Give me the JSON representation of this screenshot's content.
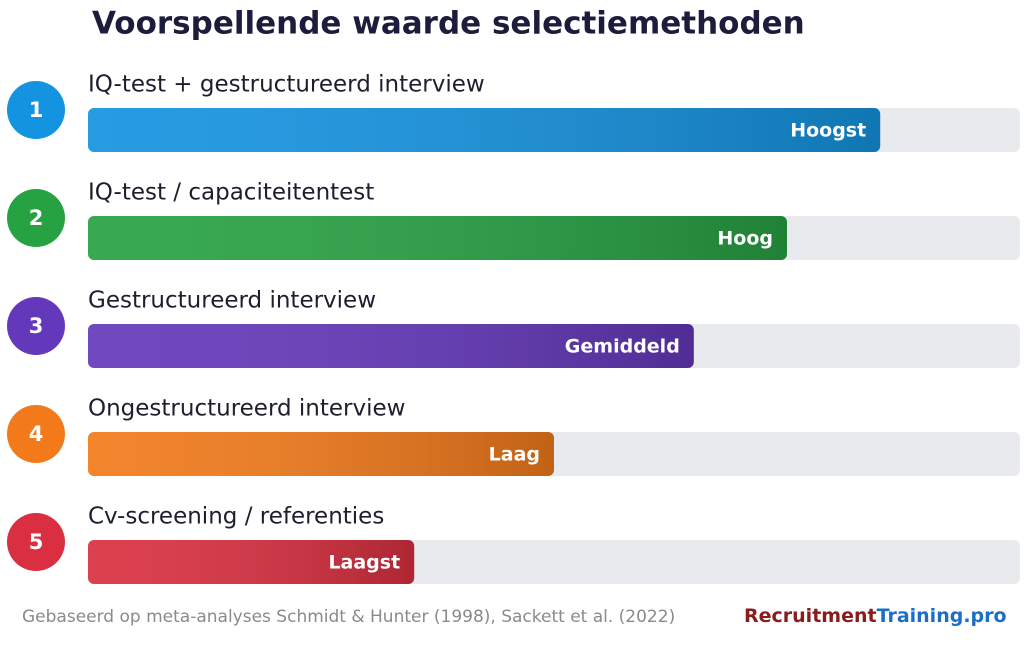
{
  "chart_data": {
    "type": "bar",
    "title": "Voorspellende waarde selectiemethoden",
    "ranks": [
      1,
      2,
      3,
      4,
      5
    ],
    "categories": [
      "IQ-test + gestructureerd interview",
      "IQ-test / capaciteitentest",
      "Gestructureerd interview",
      "Ongestructureerd interview",
      "Cv-screening / referenties"
    ],
    "values": [
      85,
      75,
      65,
      50,
      35
    ],
    "value_labels": [
      "Hoogst",
      "Hoog",
      "Gemiddeld",
      "Laag",
      "Laagst"
    ],
    "colors": [
      "#1493e0",
      "#27a243",
      "#6438bb",
      "#f27a1a",
      "#da2f40"
    ],
    "xlim": [
      0,
      100
    ],
    "source": "Gebaseerd op meta-analyses Schmidt & Hunter (1998), Sackett et al. (2022)",
    "brand": {
      "part1": "Recruitment",
      "part2": "Training.pro",
      "color1": "#8a1c1c",
      "color2": "#1d6fc6"
    }
  }
}
